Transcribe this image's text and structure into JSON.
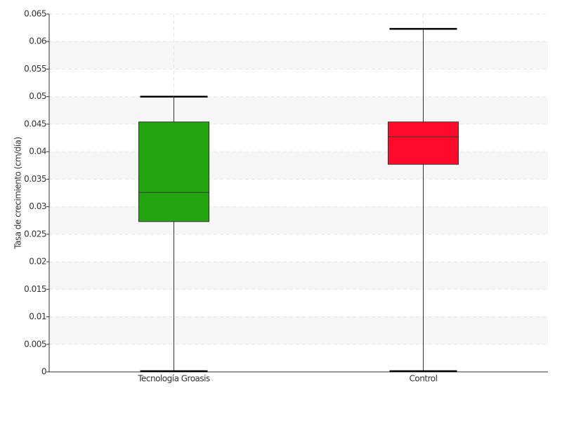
{
  "chart_data": {
    "type": "box",
    "y_label": "Tasa de crecimiento (cm/día)",
    "categories": [
      "Tecnología Groasis",
      "Control"
    ],
    "boxes": [
      {
        "min": 0,
        "q1": 0.0273,
        "median": 0.0326,
        "q3": 0.0454,
        "max": 0.05,
        "color": "#22a50f"
      },
      {
        "min": 0,
        "q1": 0.0377,
        "median": 0.0427,
        "q3": 0.0454,
        "max": 0.0623,
        "color": "#ff0a2a"
      }
    ],
    "ylim": [
      0,
      0.065
    ],
    "yticks": [
      0,
      0.005,
      0.01,
      0.015,
      0.02,
      0.025,
      0.03,
      0.035,
      0.04,
      0.045,
      0.05,
      0.055,
      0.06,
      0.065
    ],
    "grid": true
  }
}
